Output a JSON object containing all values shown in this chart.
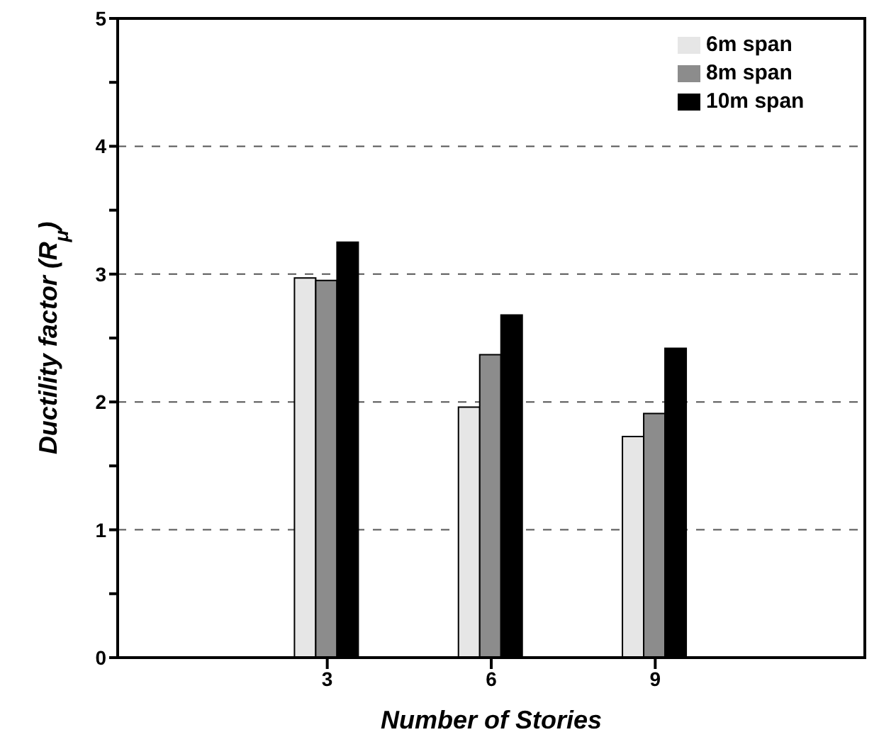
{
  "chart_data": {
    "type": "bar",
    "xlabel": "Number of Stories",
    "ylabel": "Ductility factor (R$_{μ}$)",
    "categories": [
      "3",
      "6",
      "9"
    ],
    "series": [
      {
        "name": "6m span",
        "color": "#e6e6e6",
        "values": [
          2.97,
          1.96,
          1.73
        ]
      },
      {
        "name": "8m span",
        "color": "#8c8c8c",
        "values": [
          2.95,
          2.37,
          1.91
        ]
      },
      {
        "name": "10m span",
        "color": "#000000",
        "values": [
          3.25,
          2.68,
          2.42
        ]
      }
    ],
    "ylim": [
      0,
      5
    ],
    "yticks": [
      0,
      {
        "value": 0.5,
        "label": null
      },
      1,
      {
        "value": 1.5,
        "label": null
      },
      2,
      {
        "value": 2.5,
        "label": null
      },
      3,
      {
        "value": 3.5,
        "label": null
      },
      4,
      {
        "value": 4.5,
        "label": null
      },
      5
    ],
    "grid": "y",
    "legend": "top right"
  }
}
